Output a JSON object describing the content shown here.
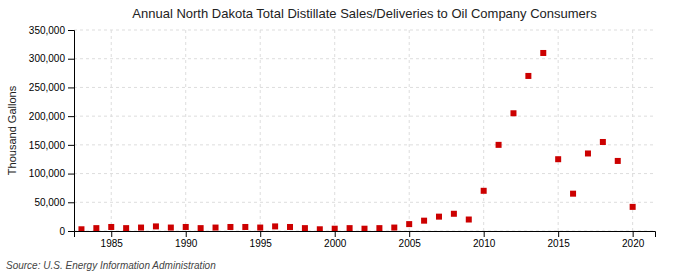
{
  "chart_data": {
    "type": "scatter",
    "title": "Annual North Dakota Total Distillate Sales/Deliveries to Oil Company Consumers",
    "y_label": "Thousand Gallons",
    "annotations": [
      "Source: U.S. Energy Information Administration"
    ],
    "x": [
      1983,
      1984,
      1985,
      1986,
      1987,
      1988,
      1989,
      1990,
      1991,
      1992,
      1993,
      1994,
      1995,
      1996,
      1997,
      1998,
      1999,
      2000,
      2001,
      2002,
      2003,
      2004,
      2005,
      2006,
      2007,
      2008,
      2009,
      2010,
      2011,
      2012,
      2013,
      2014,
      2015,
      2016,
      2017,
      2018,
      2019,
      2020
    ],
    "values": [
      3000,
      5000,
      7000,
      5000,
      6000,
      8000,
      6000,
      7000,
      5000,
      6000,
      7000,
      7000,
      6000,
      8000,
      7000,
      5000,
      3000,
      4000,
      5000,
      4000,
      5000,
      6000,
      12000,
      18000,
      25000,
      30000,
      20000,
      70000,
      150000,
      205000,
      270000,
      310000,
      125000,
      65000,
      135000,
      155000,
      122000,
      42000
    ],
    "color": "#cc0000",
    "marker": "square",
    "xlim": [
      1982.5,
      2021.5
    ],
    "ylim": [
      0,
      350000
    ],
    "xticks": [
      1985,
      1990,
      1995,
      2000,
      2005,
      2010,
      2015,
      2020
    ],
    "yticks": [
      0,
      {
        "value": 50000,
        "label": "50,000"
      },
      {
        "value": 100000,
        "label": "100,000"
      },
      {
        "value": 150000,
        "label": "150,000"
      },
      {
        "value": 200000,
        "label": "200,000"
      },
      {
        "value": 250000,
        "label": "250,000"
      },
      {
        "value": 300000,
        "label": "300,000"
      },
      {
        "value": 350000,
        "label": "350,000"
      }
    ],
    "grid": true
  }
}
